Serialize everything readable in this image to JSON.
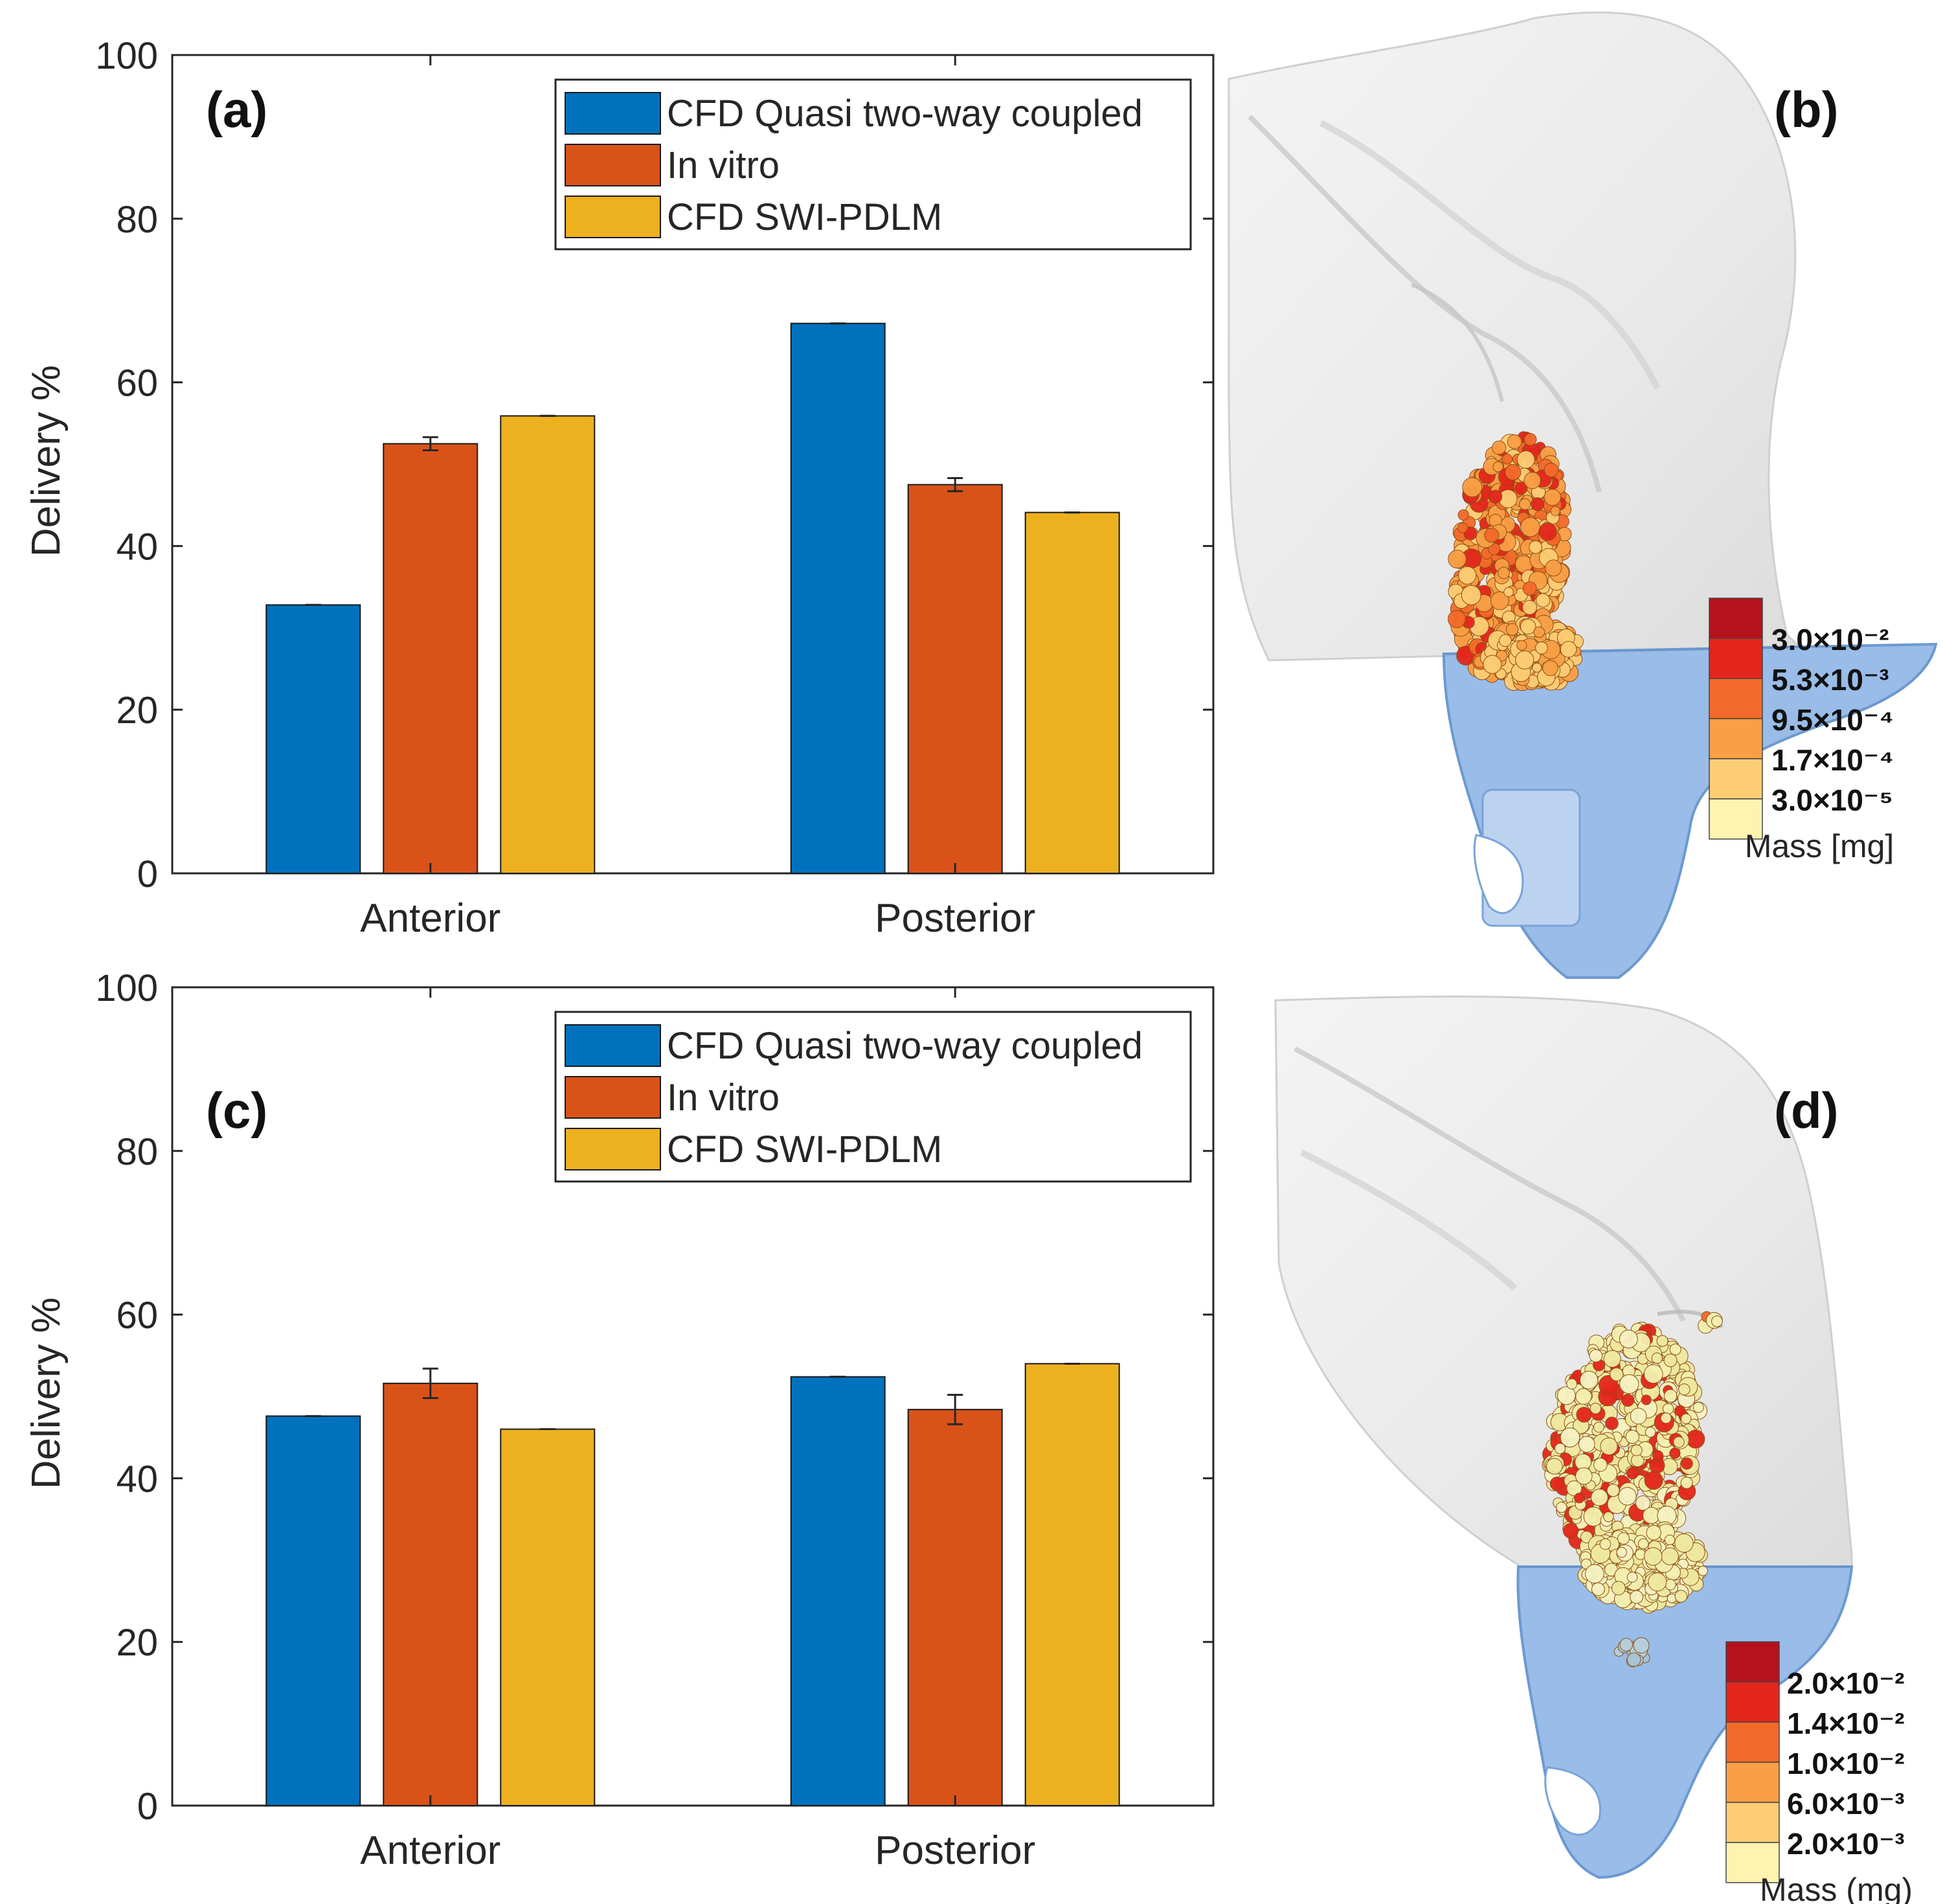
{
  "chart_data": [
    {
      "panel": "(a)",
      "type": "bar",
      "categories": [
        "Anterior",
        "Posterior"
      ],
      "ylabel": "Delivery %",
      "ylim": [
        0,
        100
      ],
      "yticks": [
        0,
        20,
        40,
        60,
        80,
        100
      ],
      "series": [
        {
          "name": "CFD Quasi two-way coupled",
          "values": [
            32.8,
            67.2
          ],
          "errors": [
            0,
            0
          ],
          "color": "#0072BD"
        },
        {
          "name": "In vitro",
          "values": [
            52.5,
            47.5
          ],
          "errors": [
            0.8,
            0.8
          ],
          "color": "#D95319"
        },
        {
          "name": "CFD SWI-PDLM",
          "values": [
            55.9,
            44.1
          ],
          "errors": [
            0,
            0
          ],
          "color": "#EDB120"
        }
      ],
      "legend": "top-right",
      "grid": false
    },
    {
      "panel": "(c)",
      "type": "bar",
      "categories": [
        "Anterior",
        "Posterior"
      ],
      "ylabel": "Delivery %",
      "ylim": [
        0,
        100
      ],
      "yticks": [
        0,
        20,
        40,
        60,
        80,
        100
      ],
      "series": [
        {
          "name": "CFD Quasi two-way coupled",
          "values": [
            47.6,
            52.4
          ],
          "errors": [
            0,
            0
          ],
          "color": "#0072BD"
        },
        {
          "name": "In vitro",
          "values": [
            51.6,
            48.4
          ],
          "errors": [
            1.8,
            1.8
          ],
          "color": "#D95319"
        },
        {
          "name": "CFD SWI-PDLM",
          "values": [
            46.0,
            54.0
          ],
          "errors": [
            0,
            0
          ],
          "color": "#EDB120"
        }
      ],
      "legend": "top-right",
      "grid": false
    }
  ],
  "images": [
    {
      "panel": "(b)",
      "colorbar": {
        "labels": [
          "3.0×10⁻²",
          "5.3×10⁻³",
          "9.5×10⁻⁴",
          "1.7×10⁻⁴",
          "3.0×10⁻⁵"
        ],
        "colors": [
          "#B5121B",
          "#E3261C",
          "#F46A2A",
          "#F99F45",
          "#FDCD74",
          "#FEF3B0"
        ],
        "title": "Mass  [mg]"
      }
    },
    {
      "panel": "(d)",
      "colorbar": {
        "labels": [
          "2.0×10⁻²",
          "1.4×10⁻²",
          "1.0×10⁻²",
          "6.0×10⁻³",
          "2.0×10⁻³"
        ],
        "colors": [
          "#B5121B",
          "#E3261C",
          "#F46A2A",
          "#F99F45",
          "#FDCD74",
          "#FEF3B0"
        ],
        "title": "Mass (mg)"
      }
    }
  ]
}
